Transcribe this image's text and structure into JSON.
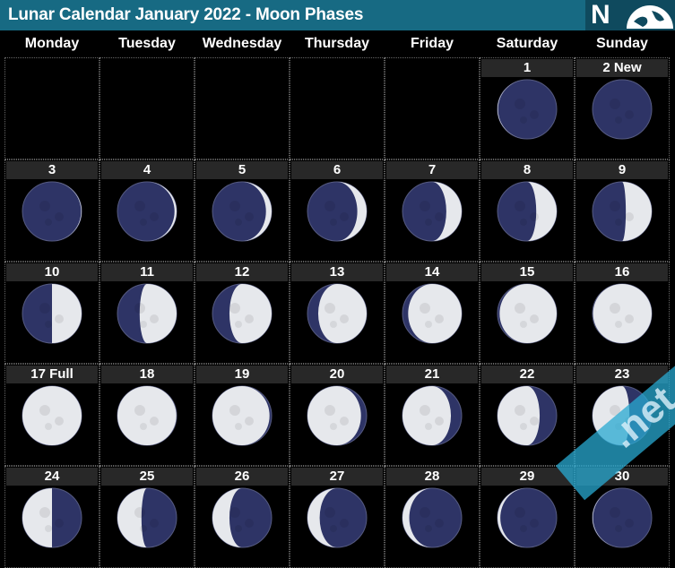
{
  "header": {
    "title": "Lunar Calendar January 2022 - Moon Phases",
    "logo_letter": "N"
  },
  "colors": {
    "header": "#176a83",
    "moon_dark": "#2e3466",
    "moon_light": "#e6e8ec",
    "label_bg": "#282828"
  },
  "weekdays": [
    "Monday",
    "Tuesday",
    "Wednesday",
    "Thursday",
    "Friday",
    "Saturday",
    "Sunday"
  ],
  "weeks": [
    [
      null,
      null,
      null,
      null,
      null,
      {
        "label": "1",
        "phase": 0.97
      },
      {
        "label": "2 New",
        "phase": 0.0
      }
    ],
    [
      {
        "label": "3",
        "phase": 0.03
      },
      {
        "label": "4",
        "phase": 0.06
      },
      {
        "label": "5",
        "phase": 0.1
      },
      {
        "label": "6",
        "phase": 0.13
      },
      {
        "label": "7",
        "phase": 0.17
      },
      {
        "label": "8",
        "phase": 0.2
      },
      {
        "label": "9",
        "phase": 0.23
      }
    ],
    [
      {
        "label": "10",
        "phase": 0.25
      },
      {
        "label": "11",
        "phase": 0.29
      },
      {
        "label": "12",
        "phase": 0.32
      },
      {
        "label": "13",
        "phase": 0.36
      },
      {
        "label": "14",
        "phase": 0.4
      },
      {
        "label": "15",
        "phase": 0.44
      },
      {
        "label": "16",
        "phase": 0.47
      }
    ],
    [
      {
        "label": "17 Full",
        "phase": 0.5
      },
      {
        "label": "18",
        "phase": 0.52
      },
      {
        "label": "19",
        "phase": 0.56
      },
      {
        "label": "20",
        "phase": 0.6
      },
      {
        "label": "21",
        "phase": 0.64
      },
      {
        "label": "22",
        "phase": 0.68
      },
      {
        "label": "23",
        "phase": 0.71
      }
    ],
    [
      {
        "label": "24",
        "phase": 0.75
      },
      {
        "label": "25",
        "phase": 0.78
      },
      {
        "label": "26",
        "phase": 0.82
      },
      {
        "label": "27",
        "phase": 0.85
      },
      {
        "label": "28",
        "phase": 0.89
      },
      {
        "label": "29",
        "phase": 0.93
      },
      {
        "label": "30",
        "phase": 0.97
      }
    ]
  ],
  "watermark": ".net"
}
